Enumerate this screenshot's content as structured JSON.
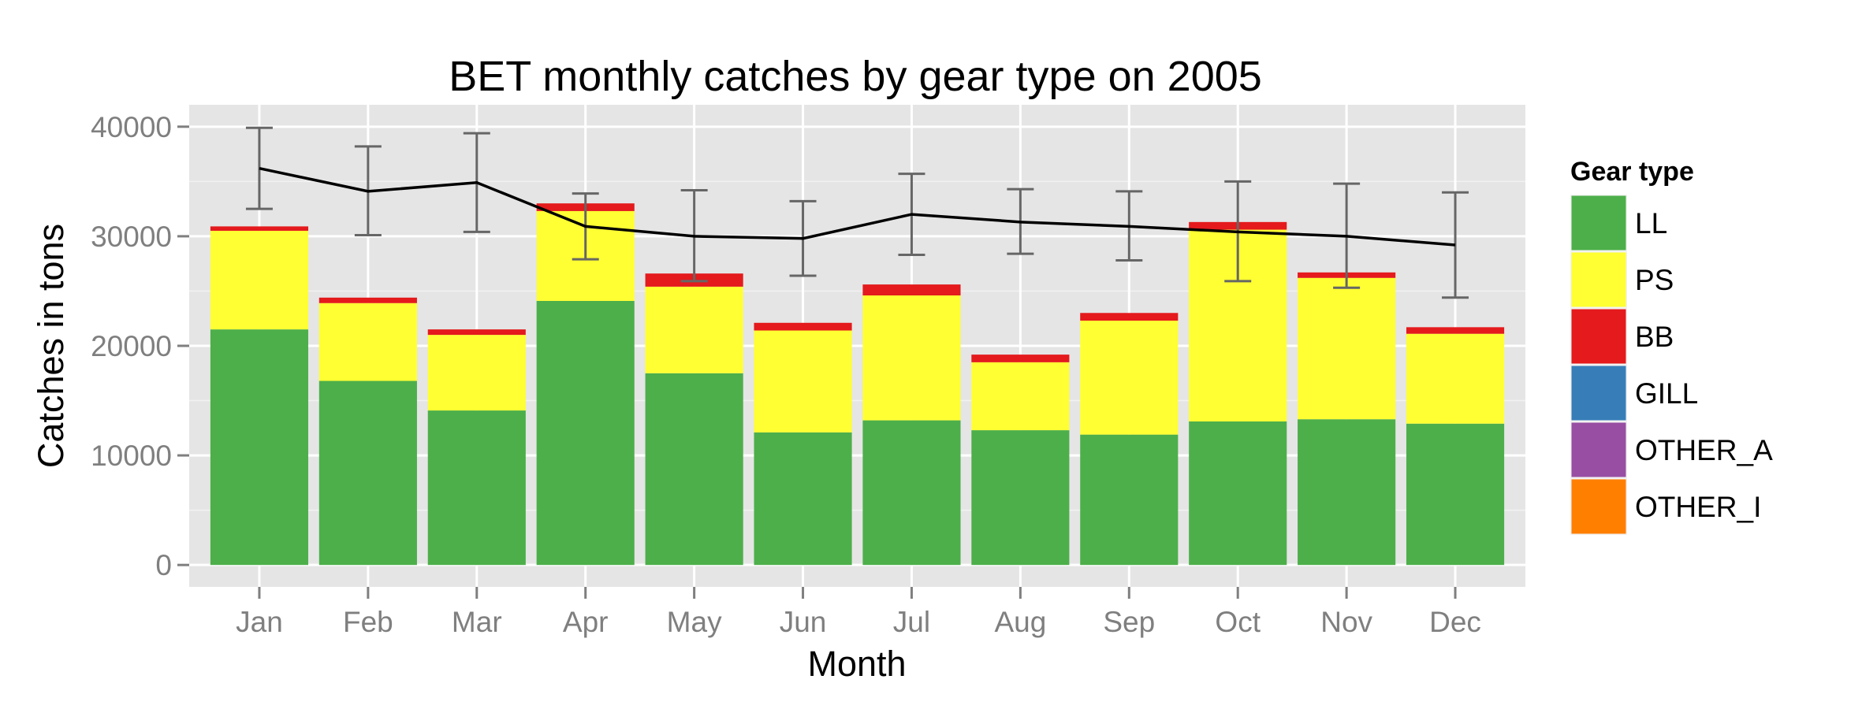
{
  "chart_data": {
    "type": "bar",
    "stacked": true,
    "title": "BET monthly catches by gear type on 2005",
    "xlabel": "Month",
    "ylabel": "Catches in tons",
    "ylim": [
      -2000,
      42000
    ],
    "yticks": [
      0,
      10000,
      20000,
      30000,
      40000
    ],
    "yticklabels": [
      "0",
      "10000",
      "20000",
      "30000",
      "40000"
    ],
    "grid": true,
    "categories": [
      "Jan",
      "Feb",
      "Mar",
      "Apr",
      "May",
      "Jun",
      "Jul",
      "Aug",
      "Sep",
      "Oct",
      "Nov",
      "Dec"
    ],
    "series": [
      {
        "name": "LL",
        "color": "#4daf4a",
        "values": [
          21500,
          16800,
          14100,
          24100,
          17500,
          12100,
          13200,
          12300,
          11900,
          13100,
          13300,
          12900
        ]
      },
      {
        "name": "PS",
        "color": "#ffff33",
        "values": [
          9000,
          7100,
          6900,
          8200,
          7900,
          9300,
          11400,
          6200,
          10400,
          17500,
          12900,
          8200
        ]
      },
      {
        "name": "BB",
        "color": "#e41a1c",
        "values": [
          400,
          500,
          500,
          700,
          1200,
          700,
          1000,
          700,
          700,
          700,
          500,
          600
        ]
      },
      {
        "name": "GILL",
        "color": "#377eb8",
        "values": [
          0,
          0,
          0,
          0,
          0,
          0,
          0,
          0,
          0,
          0,
          0,
          0
        ]
      },
      {
        "name": "OTHER_A",
        "color": "#984ea3",
        "values": [
          0,
          0,
          0,
          0,
          0,
          0,
          0,
          0,
          0,
          0,
          0,
          0
        ]
      },
      {
        "name": "OTHER_I",
        "color": "#ff7f00",
        "values": [
          0,
          0,
          0,
          0,
          0,
          0,
          0,
          0,
          0,
          0,
          0,
          0
        ]
      }
    ],
    "line": {
      "color": "#000000",
      "values": [
        36200,
        34100,
        34900,
        30900,
        30000,
        29800,
        32000,
        31300,
        30900,
        30400,
        30000,
        29200
      ],
      "error_low": [
        32500,
        30100,
        30400,
        27900,
        25900,
        26400,
        28300,
        28400,
        27800,
        25900,
        25300,
        24400
      ],
      "error_high": [
        39900,
        38200,
        39400,
        33900,
        34200,
        33200,
        35700,
        34300,
        34100,
        35000,
        34800,
        34000
      ],
      "errorbar_color": "#666666"
    },
    "legend": {
      "title": "Gear type",
      "position": "right"
    }
  }
}
